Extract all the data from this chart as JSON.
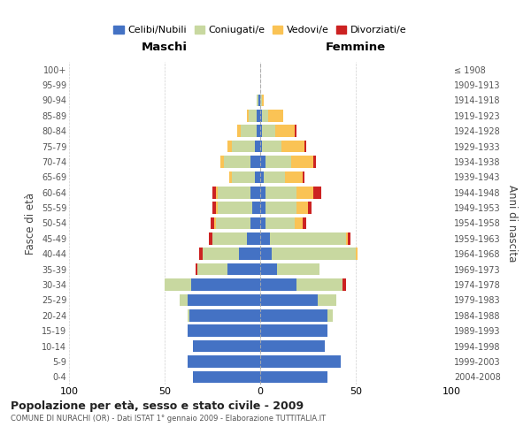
{
  "age_groups": [
    "0-4",
    "5-9",
    "10-14",
    "15-19",
    "20-24",
    "25-29",
    "30-34",
    "35-39",
    "40-44",
    "45-49",
    "50-54",
    "55-59",
    "60-64",
    "65-69",
    "70-74",
    "75-79",
    "80-84",
    "85-89",
    "90-94",
    "95-99",
    "100+"
  ],
  "birth_years": [
    "2004-2008",
    "1999-2003",
    "1994-1998",
    "1989-1993",
    "1984-1988",
    "1979-1983",
    "1974-1978",
    "1969-1973",
    "1964-1968",
    "1959-1963",
    "1954-1958",
    "1949-1953",
    "1944-1948",
    "1939-1943",
    "1934-1938",
    "1929-1933",
    "1924-1928",
    "1919-1923",
    "1914-1918",
    "1909-1913",
    "≤ 1908"
  ],
  "colors": {
    "celibe": "#4472c4",
    "coniugato": "#c8d8a0",
    "vedovo": "#fac355",
    "divorziato": "#cc2222"
  },
  "maschi": {
    "celibe": [
      35,
      38,
      35,
      38,
      37,
      38,
      36,
      17,
      11,
      7,
      5,
      4,
      5,
      3,
      5,
      3,
      2,
      2,
      1,
      0,
      0
    ],
    "coniugato": [
      0,
      0,
      0,
      0,
      1,
      4,
      14,
      16,
      19,
      18,
      18,
      18,
      17,
      12,
      14,
      12,
      8,
      4,
      1,
      0,
      0
    ],
    "vedovo": [
      0,
      0,
      0,
      0,
      0,
      0,
      0,
      0,
      0,
      0,
      1,
      1,
      1,
      1,
      2,
      2,
      2,
      1,
      0,
      0,
      0
    ],
    "divorziato": [
      0,
      0,
      0,
      0,
      0,
      0,
      0,
      1,
      2,
      2,
      2,
      2,
      2,
      0,
      0,
      0,
      0,
      0,
      0,
      0,
      0
    ]
  },
  "femmine": {
    "nubile": [
      35,
      42,
      34,
      35,
      35,
      30,
      19,
      9,
      6,
      5,
      3,
      3,
      3,
      2,
      3,
      1,
      1,
      1,
      0,
      0,
      0
    ],
    "coniugata": [
      0,
      0,
      0,
      0,
      3,
      10,
      24,
      22,
      44,
      40,
      15,
      16,
      16,
      11,
      13,
      10,
      7,
      3,
      1,
      0,
      0
    ],
    "vedova": [
      0,
      0,
      0,
      0,
      0,
      0,
      0,
      0,
      1,
      1,
      4,
      6,
      9,
      9,
      12,
      12,
      10,
      8,
      1,
      0,
      0
    ],
    "divorziata": [
      0,
      0,
      0,
      0,
      0,
      0,
      2,
      0,
      0,
      1,
      2,
      2,
      4,
      1,
      1,
      1,
      1,
      0,
      0,
      0,
      0
    ]
  },
  "title": "Popolazione per età, sesso e stato civile - 2009",
  "subtitle": "COMUNE DI NURACHI (OR) - Dati ISTAT 1° gennaio 2009 - Elaborazione TUTTITALIA.IT",
  "label_maschi": "Maschi",
  "label_femmine": "Femmine",
  "ylabel_left": "Fasce di età",
  "ylabel_right": "Anni di nascita",
  "legend_labels": [
    "Celibi/Nubili",
    "Coniugati/e",
    "Vedovi/e",
    "Divorziati/e"
  ],
  "xlim": 100,
  "bg_color": "#ffffff",
  "grid_color": "#cccccc"
}
